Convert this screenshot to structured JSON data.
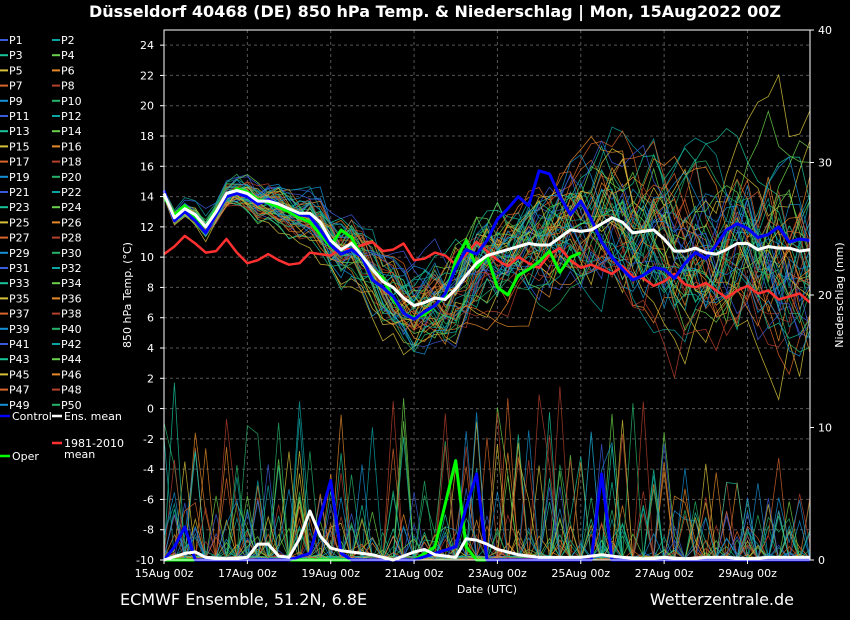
{
  "chart_data": {
    "type": "line",
    "title": "Düsseldorf 40468 (DE)  850 hPa Temp. & Niederschlag | Mon, 15Aug2022 00Z",
    "xlabel": "Date (UTC)",
    "ylabel": "850 hPa Temp. (°C)",
    "y2label": "Niederschlag (mm)",
    "ylim": [
      -10,
      25
    ],
    "y2lim": [
      0,
      40
    ],
    "yticks": [
      "24",
      "22",
      "20",
      "18",
      "16",
      "14",
      "12",
      "10",
      "8",
      "6",
      "4",
      "2",
      "0",
      "-2",
      "-4",
      "-6",
      "-8",
      "-10"
    ],
    "y2ticks": [
      "40",
      "30",
      "20",
      "10",
      "0"
    ],
    "xticks": [
      "15Aug 00z",
      "17Aug 00z",
      "19Aug 00z",
      "21Aug 00z",
      "23Aug 00z",
      "25Aug 00z",
      "27Aug 00z",
      "29Aug 00z"
    ],
    "xdays": [
      0,
      15.5
    ],
    "grid": true,
    "legend": "left",
    "colors": {
      "control": "#0000ff",
      "mean": "#ffffff",
      "oper": "#00ff00",
      "climate": "#ff3030",
      "grid": "#555555",
      "perturbed": [
        "#3b5bdb",
        "#0aa4a4",
        "#19c39a",
        "#6ad14a",
        "#d6c23a",
        "#e58a2a",
        "#d8652c",
        "#b5402c",
        "#1592d6",
        "#26b46a"
      ]
    },
    "members": [
      "P1",
      "P2",
      "P3",
      "P4",
      "P5",
      "P6",
      "P7",
      "P8",
      "P9",
      "P10",
      "P11",
      "P12",
      "P13",
      "P14",
      "P15",
      "P16",
      "P17",
      "P18",
      "P19",
      "P20",
      "P21",
      "P22",
      "P23",
      "P24",
      "P25",
      "P26",
      "P27",
      "P28",
      "P29",
      "P30",
      "P31",
      "P32",
      "P33",
      "P34",
      "P35",
      "P36",
      "P37",
      "P38",
      "P39",
      "P40",
      "P41",
      "P42",
      "P43",
      "P44",
      "P45",
      "P46",
      "P47",
      "P48",
      "P49",
      "P50"
    ],
    "legend_extra": {
      "control": "Control",
      "mean": "Ens. mean",
      "climate": [
        "1981-2010",
        "mean"
      ],
      "oper": "Oper"
    },
    "series": [
      {
        "name": "Ens. mean",
        "role": "mean",
        "x": [
          0,
          0.25,
          0.5,
          0.75,
          1,
          1.25,
          1.5,
          1.75,
          2,
          2.25,
          2.5,
          2.75,
          3,
          3.25,
          3.5,
          3.75,
          4,
          4.25,
          4.5,
          4.75,
          5,
          5.25,
          5.5,
          5.75,
          6,
          6.25,
          6.5,
          6.75,
          7,
          7.25,
          7.5,
          7.75,
          8,
          8.25,
          8.5,
          8.75,
          9,
          9.25,
          9.5,
          9.75,
          10,
          10.25,
          10.5,
          10.75,
          11,
          11.25,
          11.5,
          11.75,
          12,
          12.25,
          12.5,
          12.75,
          13,
          13.25,
          13.5,
          13.75,
          14,
          14.25,
          14.5,
          14.75,
          15,
          15.25,
          15.5
        ],
        "y": [
          14.2,
          12.6,
          13.2,
          12.8,
          12.0,
          13.0,
          14.2,
          14.4,
          14.2,
          13.7,
          13.7,
          13.5,
          13.2,
          12.9,
          12.9,
          12.3,
          11.1,
          10.5,
          10.9,
          10.1,
          9.2,
          8.4,
          8.0,
          7.3,
          6.8,
          7.0,
          7.3,
          7.2,
          7.9,
          8.8,
          9.6,
          10.1,
          10.3,
          10.5,
          10.7,
          10.9,
          10.8,
          10.8,
          11.3,
          11.8,
          11.7,
          11.8,
          12.2,
          12.6,
          12.3,
          11.6,
          11.7,
          11.8,
          11.2,
          10.4,
          10.4,
          10.6,
          10.3,
          10.2,
          10.5,
          10.9,
          10.9,
          10.5,
          10.7,
          10.6,
          10.6,
          10.4,
          10.5
        ]
      },
      {
        "name": "Control",
        "role": "control",
        "x": [
          0,
          0.25,
          0.5,
          0.75,
          1,
          1.25,
          1.5,
          1.75,
          2,
          2.25,
          2.5,
          2.75,
          3,
          3.25,
          3.5,
          3.75,
          4,
          4.25,
          4.5,
          4.75,
          5,
          5.25,
          5.5,
          5.75,
          6,
          6.25,
          6.5,
          6.75,
          7,
          7.25,
          7.5,
          7.75,
          8,
          8.25,
          8.5,
          8.75,
          9,
          9.25,
          9.5,
          9.75,
          10,
          10.25,
          10.5,
          10.75,
          11,
          11.25,
          11.5,
          11.75,
          12,
          12.25,
          12.5,
          12.75,
          13,
          13.25,
          13.5,
          13.75,
          14,
          14.25,
          14.5,
          14.75,
          15,
          15.25,
          15.5
        ],
        "y": [
          14.4,
          12.4,
          13.0,
          12.4,
          11.6,
          12.8,
          14.0,
          14.2,
          14.0,
          13.5,
          13.8,
          13.5,
          13.2,
          12.8,
          12.7,
          11.8,
          10.8,
          10.2,
          10.5,
          10.0,
          8.5,
          8.0,
          7.4,
          6.3,
          5.9,
          6.4,
          6.8,
          7.6,
          9.3,
          10.5,
          10.2,
          11.1,
          12.5,
          13.2,
          14.0,
          13.4,
          15.7,
          15.5,
          14.0,
          12.8,
          13.7,
          12.5,
          11.0,
          10.0,
          9.2,
          8.5,
          8.8,
          9.3,
          9.2,
          8.6,
          9.6,
          10.3,
          9.9,
          10.8,
          11.8,
          12.2,
          11.9,
          11.3,
          11.5,
          12.0,
          11.0,
          11.2,
          11.1
        ]
      },
      {
        "name": "Oper",
        "role": "oper",
        "x": [
          0,
          0.25,
          0.5,
          0.75,
          1,
          1.25,
          1.5,
          1.75,
          2,
          2.25,
          2.5,
          2.75,
          3,
          3.25,
          3.5,
          3.75,
          4,
          4.25,
          4.5,
          4.75,
          5,
          5.25,
          5.5,
          5.75,
          6,
          6.25,
          6.5,
          6.75,
          7,
          7.25,
          7.5,
          7.75,
          8,
          8.25,
          8.5,
          8.75,
          9,
          9.25,
          9.5,
          9.75,
          10
        ],
        "y": [
          14.0,
          12.8,
          13.4,
          12.6,
          12.0,
          13.1,
          14.0,
          14.5,
          14.3,
          13.8,
          13.6,
          13.3,
          13.0,
          12.6,
          12.3,
          11.5,
          10.7,
          11.8,
          11.3,
          10.0,
          9.2,
          8.6,
          7.2,
          6.3,
          6.0,
          6.2,
          6.8,
          7.4,
          9.8,
          11.1,
          9.3,
          10.1,
          8.0,
          7.5,
          8.8,
          9.2,
          9.7,
          10.4,
          9.0,
          10.0,
          10.3
        ]
      },
      {
        "name": "1981-2010 mean",
        "role": "climate",
        "x": [
          0,
          0.25,
          0.5,
          0.75,
          1,
          1.25,
          1.5,
          1.75,
          2,
          2.25,
          2.5,
          2.75,
          3,
          3.25,
          3.5,
          3.75,
          4,
          4.25,
          4.5,
          4.75,
          5,
          5.25,
          5.5,
          5.75,
          6,
          6.25,
          6.5,
          6.75,
          7,
          7.25,
          7.5,
          7.75,
          8,
          8.25,
          8.5,
          8.75,
          9,
          9.25,
          9.5,
          9.75,
          10,
          10.25,
          10.5,
          10.75,
          11,
          11.25,
          11.5,
          11.75,
          12,
          12.25,
          12.5,
          12.75,
          13,
          13.25,
          13.5,
          13.75,
          14,
          14.25,
          14.5,
          14.75,
          15,
          15.25,
          15.5
        ],
        "y": [
          10.2,
          10.7,
          11.4,
          10.9,
          10.3,
          10.4,
          11.2,
          10.3,
          9.6,
          9.8,
          10.2,
          9.8,
          9.5,
          9.6,
          10.3,
          10.2,
          10.1,
          10.6,
          10.5,
          10.8,
          11.0,
          10.4,
          10.5,
          10.9,
          9.8,
          9.9,
          10.3,
          10.1,
          9.5,
          10.2,
          11.0,
          10.4,
          9.8,
          9.4,
          10.0,
          9.6,
          9.3,
          10.2,
          10.6,
          9.8,
          9.3,
          9.5,
          9.2,
          8.9,
          9.4,
          8.7,
          8.6,
          8.1,
          8.4,
          8.9,
          8.2,
          8.0,
          8.3,
          7.8,
          7.3,
          7.8,
          8.1,
          7.6,
          7.8,
          7.2,
          7.4,
          7.6,
          7.0
        ]
      },
      {
        "name": "Control precip",
        "role": "control",
        "axis": "y2",
        "x": [
          0,
          0.25,
          0.5,
          0.75,
          1,
          2,
          2.5,
          3,
          3.5,
          4,
          4.25,
          4.5,
          4.75,
          5,
          6,
          7,
          7.25,
          7.5,
          7.75,
          8,
          9,
          10,
          10.25,
          10.5,
          10.75,
          11,
          12,
          13,
          15.5
        ],
        "y": [
          0,
          1.0,
          2.5,
          0,
          0,
          0,
          0,
          0,
          0.5,
          6.0,
          0.5,
          0,
          0,
          0,
          0,
          1.0,
          4.0,
          6.5,
          0,
          0,
          0,
          0,
          0,
          6.5,
          0,
          0,
          0,
          0,
          0
        ]
      },
      {
        "name": "Mean precip",
        "role": "mean",
        "axis": "y2",
        "x": [
          0,
          0.5,
          0.75,
          1,
          1.5,
          2,
          2.25,
          2.5,
          2.75,
          3,
          3.25,
          3.5,
          3.75,
          4,
          4.25,
          4.5,
          5,
          5.5,
          6,
          6.25,
          6.5,
          7,
          7.25,
          7.5,
          7.75,
          8,
          8.5,
          9,
          9.5,
          10,
          10.5,
          11,
          11.5,
          12,
          12.5,
          13,
          13.5,
          14,
          14.5,
          15,
          15.5
        ],
        "y": [
          0,
          0.5,
          0.6,
          0.2,
          0.1,
          0.2,
          1.2,
          1.2,
          0.3,
          0.2,
          1.6,
          3.7,
          1.8,
          0.9,
          0.7,
          0.6,
          0.4,
          0.0,
          0.6,
          0.8,
          0.4,
          0.2,
          1.6,
          1.5,
          1.2,
          0.8,
          0.4,
          0.2,
          0.2,
          0.2,
          0.4,
          0.2,
          0.1,
          0.2,
          0.1,
          0.2,
          0.2,
          0.1,
          0.2,
          0.2,
          0.2
        ]
      },
      {
        "name": "Oper precip",
        "role": "oper",
        "axis": "y2",
        "x": [
          0,
          1,
          2,
          3,
          4,
          5,
          6,
          6.5,
          7,
          7.25,
          7.5,
          8,
          9,
          10
        ],
        "y": [
          0,
          0,
          0,
          0,
          0,
          0,
          0,
          1.0,
          7.5,
          1.0,
          0,
          0,
          0,
          0
        ]
      }
    ]
  },
  "footer": {
    "left": "ECMWF Ensemble, 51.2N, 6.8E",
    "right": "Wetterzentrale.de"
  }
}
